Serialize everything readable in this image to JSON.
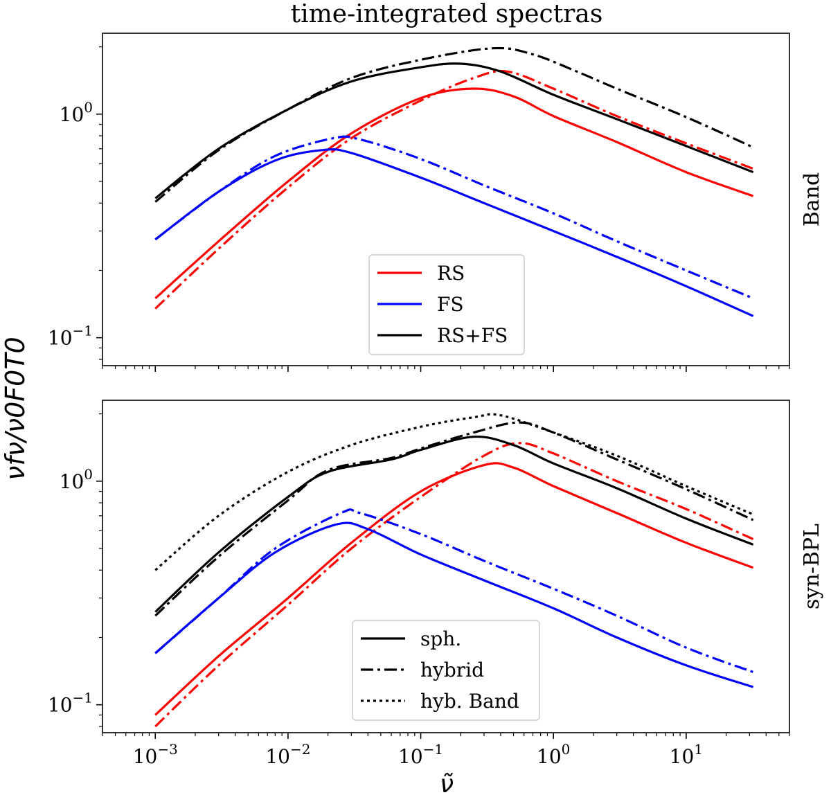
{
  "figure": {
    "title": "time-integrated spectras",
    "ylabel": "νfν/ν0F0T0",
    "xlabel": "ν̃"
  },
  "chart_data": [
    {
      "type": "line",
      "panel_label": "Band",
      "xscale": "log",
      "yscale": "log",
      "xlim": [
        0.0004,
        60
      ],
      "ylim": [
        0.075,
        2.3
      ],
      "grid": false,
      "legend_position": "lower-center",
      "legend": [
        {
          "label": "RS",
          "color": "#ff0000",
          "style": "solid"
        },
        {
          "label": "FS",
          "color": "#0000ff",
          "style": "solid"
        },
        {
          "label": "RS+FS",
          "color": "#000000",
          "style": "solid"
        }
      ],
      "xticks": [
        "10^-3",
        "10^-2",
        "10^-1",
        "10^0",
        "10^1"
      ],
      "yticks": [
        "10^-1",
        "10^0"
      ],
      "series": [
        {
          "component": "RS",
          "model": "sph.",
          "color": "#ff0000",
          "style": "solid",
          "x": [
            0.001,
            0.003,
            0.01,
            0.03,
            0.1,
            0.25,
            0.5,
            1,
            3,
            10,
            32
          ],
          "y": [
            0.15,
            0.27,
            0.5,
            0.82,
            1.18,
            1.3,
            1.2,
            0.98,
            0.75,
            0.55,
            0.43
          ]
        },
        {
          "component": "RS",
          "model": "hybrid",
          "color": "#ff0000",
          "style": "dashdot",
          "x": [
            0.001,
            0.003,
            0.01,
            0.03,
            0.1,
            0.25,
            0.45,
            1,
            3,
            10,
            32
          ],
          "y": [
            0.135,
            0.25,
            0.47,
            0.78,
            1.15,
            1.45,
            1.55,
            1.3,
            0.98,
            0.74,
            0.57
          ]
        },
        {
          "component": "FS",
          "model": "sph.",
          "color": "#0000ff",
          "style": "solid",
          "x": [
            0.001,
            0.003,
            0.008,
            0.018,
            0.03,
            0.1,
            0.3,
            1,
            3,
            10,
            32
          ],
          "y": [
            0.275,
            0.45,
            0.62,
            0.69,
            0.67,
            0.52,
            0.4,
            0.3,
            0.23,
            0.17,
            0.125
          ]
        },
        {
          "component": "FS",
          "model": "hybrid",
          "color": "#0000ff",
          "style": "dashdot",
          "x": [
            0.001,
            0.003,
            0.008,
            0.022,
            0.035,
            0.1,
            0.3,
            1,
            3,
            10,
            32
          ],
          "y": [
            0.275,
            0.45,
            0.65,
            0.78,
            0.77,
            0.63,
            0.48,
            0.36,
            0.27,
            0.2,
            0.15
          ]
        },
        {
          "component": "RS+FS",
          "model": "sph.",
          "color": "#000000",
          "style": "solid",
          "x": [
            0.001,
            0.003,
            0.01,
            0.03,
            0.1,
            0.2,
            0.4,
            1,
            3,
            10,
            32
          ],
          "y": [
            0.42,
            0.7,
            1.05,
            1.4,
            1.62,
            1.68,
            1.55,
            1.22,
            0.95,
            0.72,
            0.55
          ]
        },
        {
          "component": "RS+FS",
          "model": "hybrid",
          "color": "#000000",
          "style": "dashdot",
          "x": [
            0.001,
            0.003,
            0.01,
            0.03,
            0.1,
            0.35,
            0.7,
            1.5,
            3,
            10,
            32
          ],
          "y": [
            0.405,
            0.69,
            1.05,
            1.45,
            1.75,
            1.97,
            1.85,
            1.55,
            1.3,
            0.97,
            0.71
          ]
        }
      ]
    },
    {
      "type": "line",
      "panel_label": "syn-BPL",
      "xscale": "log",
      "yscale": "log",
      "xlim": [
        0.0004,
        60
      ],
      "ylim": [
        0.075,
        2.3
      ],
      "grid": false,
      "legend_position": "lower-center",
      "legend": [
        {
          "label": "sph.",
          "color": "#000000",
          "style": "solid"
        },
        {
          "label": "hybrid",
          "color": "#000000",
          "style": "dashdot"
        },
        {
          "label": "hyb. Band",
          "color": "#000000",
          "style": "dotted"
        }
      ],
      "xticks": [
        "10^-3",
        "10^-2",
        "10^-1",
        "10^0",
        "10^1"
      ],
      "yticks": [
        "10^-1",
        "10^0"
      ],
      "series": [
        {
          "component": "RS",
          "model": "sph.",
          "color": "#ff0000",
          "style": "solid",
          "x": [
            0.001,
            0.003,
            0.01,
            0.03,
            0.1,
            0.3,
            0.5,
            1,
            3,
            10,
            32
          ],
          "y": [
            0.09,
            0.165,
            0.3,
            0.53,
            0.9,
            1.18,
            1.15,
            0.95,
            0.72,
            0.53,
            0.41
          ]
        },
        {
          "component": "RS",
          "model": "hybrid",
          "color": "#ff0000",
          "style": "dashdot",
          "x": [
            0.001,
            0.003,
            0.01,
            0.03,
            0.1,
            0.3,
            0.55,
            1,
            3,
            10,
            32
          ],
          "y": [
            0.08,
            0.15,
            0.28,
            0.5,
            0.85,
            1.3,
            1.48,
            1.33,
            1.0,
            0.75,
            0.55
          ]
        },
        {
          "component": "FS",
          "model": "sph.",
          "color": "#0000ff",
          "style": "solid",
          "x": [
            0.001,
            0.003,
            0.008,
            0.023,
            0.04,
            0.1,
            0.3,
            1,
            3,
            10,
            32
          ],
          "y": [
            0.17,
            0.3,
            0.48,
            0.64,
            0.61,
            0.47,
            0.36,
            0.27,
            0.2,
            0.15,
            0.12
          ]
        },
        {
          "component": "FS",
          "model": "hybrid",
          "color": "#0000ff",
          "style": "dashdot",
          "x": [
            0.001,
            0.003,
            0.008,
            0.025,
            0.035,
            0.1,
            0.3,
            1,
            3,
            10,
            32
          ],
          "y": [
            0.17,
            0.3,
            0.5,
            0.72,
            0.72,
            0.58,
            0.44,
            0.33,
            0.25,
            0.18,
            0.14
          ]
        },
        {
          "component": "RS+FS",
          "model": "sph.",
          "color": "#000000",
          "style": "solid",
          "x": [
            0.001,
            0.003,
            0.01,
            0.02,
            0.06,
            0.1,
            0.25,
            0.5,
            1,
            3,
            10,
            32
          ],
          "y": [
            0.26,
            0.48,
            0.85,
            1.1,
            1.25,
            1.38,
            1.58,
            1.45,
            1.2,
            0.93,
            0.68,
            0.52
          ]
        },
        {
          "component": "RS+FS",
          "model": "hybrid",
          "color": "#000000",
          "style": "dashdot",
          "x": [
            0.001,
            0.003,
            0.01,
            0.02,
            0.06,
            0.1,
            0.25,
            0.55,
            1,
            3,
            10,
            32
          ],
          "y": [
            0.25,
            0.46,
            0.82,
            1.12,
            1.27,
            1.4,
            1.65,
            1.83,
            1.65,
            1.25,
            0.92,
            0.67
          ]
        },
        {
          "component": "RS+FS",
          "model": "hyb. Band",
          "color": "#000000",
          "style": "dotted",
          "x": [
            0.001,
            0.003,
            0.01,
            0.03,
            0.1,
            0.25,
            0.4,
            1,
            3,
            10,
            32
          ],
          "y": [
            0.4,
            0.7,
            1.1,
            1.45,
            1.75,
            1.93,
            1.97,
            1.65,
            1.3,
            0.95,
            0.71
          ]
        }
      ]
    }
  ]
}
